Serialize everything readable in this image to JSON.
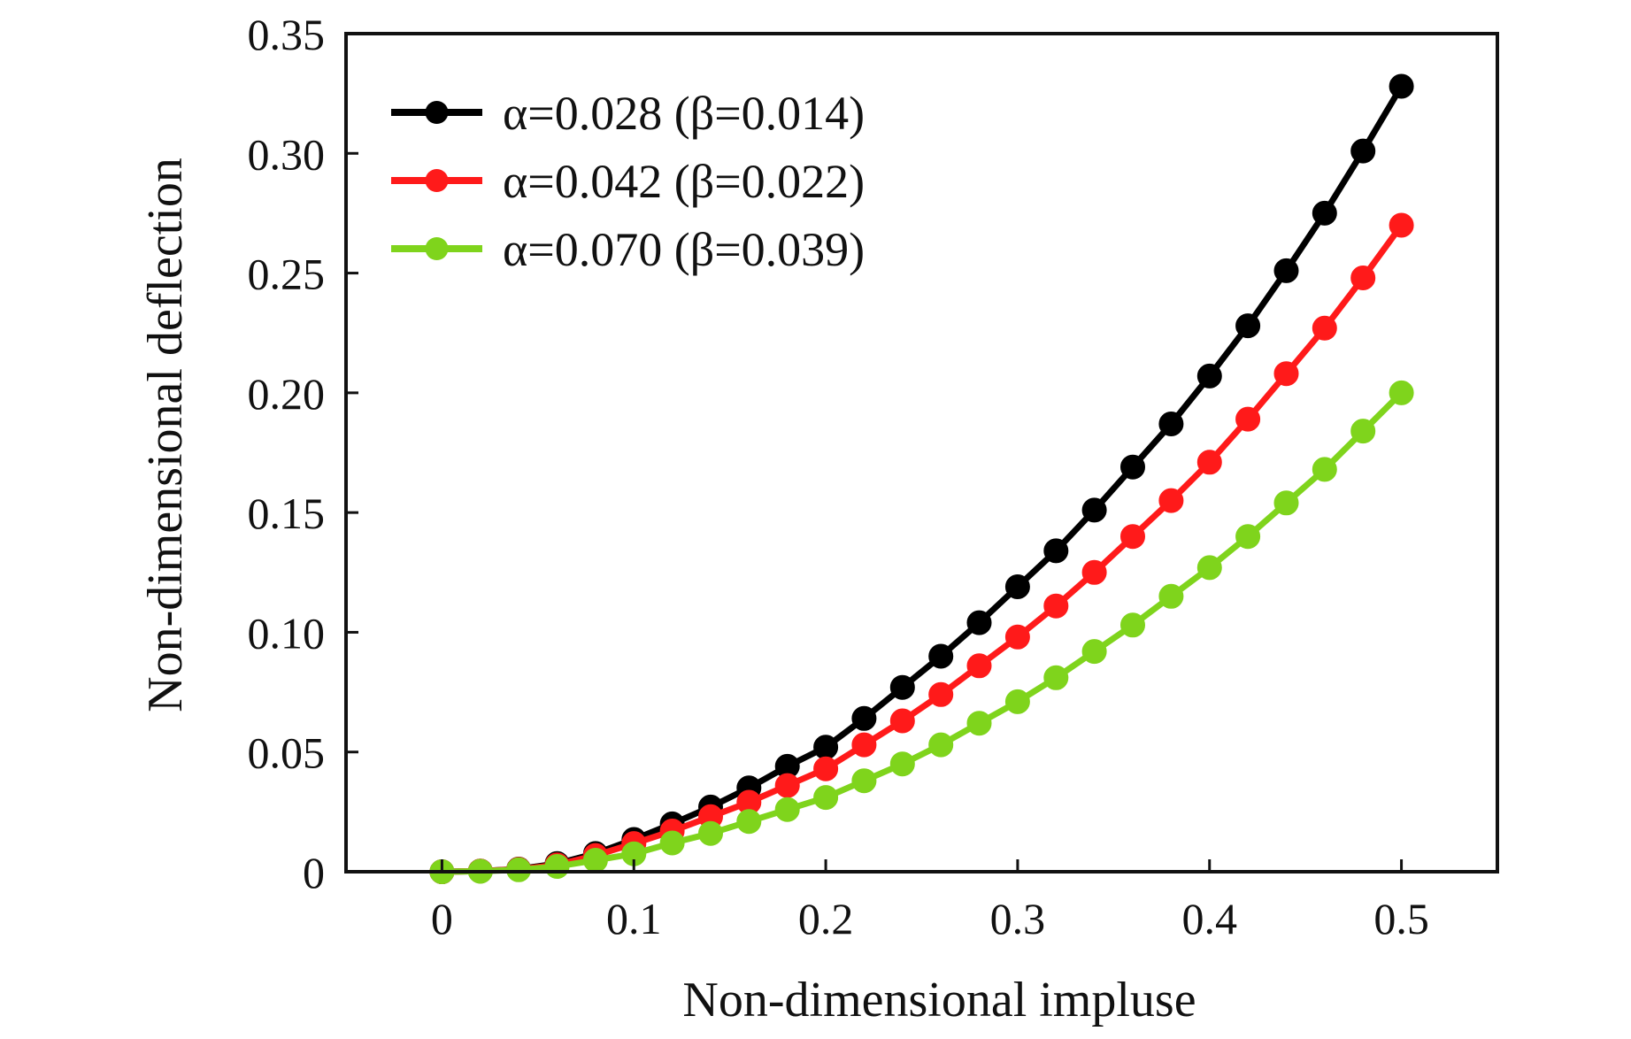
{
  "chart_data": {
    "type": "line",
    "title": "",
    "xlabel": "Non-dimensional impluse",
    "ylabel": "Non-dimensional deflection",
    "xlim": [
      -0.05,
      0.55
    ],
    "ylim": [
      0,
      0.35
    ],
    "xticks": [
      0,
      0.1,
      0.2,
      0.3,
      0.4,
      0.5
    ],
    "xtick_labels": [
      "0",
      "0.1",
      "0.2",
      "0.3",
      "0.4",
      "0.5"
    ],
    "yticks": [
      0,
      0.05,
      0.1,
      0.15,
      0.2,
      0.25,
      0.3,
      0.35
    ],
    "ytick_labels": [
      "0",
      "0.05",
      "0.10",
      "0.15",
      "0.20",
      "0.25",
      "0.30",
      "0.35"
    ],
    "grid": false,
    "legend_position": "top-left",
    "x": [
      0,
      0.02,
      0.04,
      0.06,
      0.08,
      0.1,
      0.12,
      0.14,
      0.16,
      0.18,
      0.2,
      0.22,
      0.24,
      0.26,
      0.28,
      0.3,
      0.32,
      0.34,
      0.36,
      0.38,
      0.4,
      0.42,
      0.44,
      0.46,
      0.48,
      0.5
    ],
    "series": [
      {
        "name": "α=0.028 (β=0.014)",
        "color": "#000000",
        "values": [
          0,
          0.0003,
          0.0011,
          0.0034,
          0.0076,
          0.0135,
          0.02,
          0.027,
          0.035,
          0.044,
          0.052,
          0.064,
          0.077,
          0.09,
          0.104,
          0.119,
          0.134,
          0.151,
          0.169,
          0.187,
          0.207,
          0.228,
          0.251,
          0.275,
          0.301,
          0.328
        ]
      },
      {
        "name": "α=0.042 (β=0.022)",
        "color": "#ff1a1a",
        "values": [
          0,
          0.0003,
          0.001,
          0.0029,
          0.0068,
          0.0118,
          0.017,
          0.023,
          0.029,
          0.036,
          0.043,
          0.053,
          0.063,
          0.074,
          0.086,
          0.098,
          0.111,
          0.125,
          0.14,
          0.155,
          0.171,
          0.189,
          0.208,
          0.227,
          0.248,
          0.27
        ]
      },
      {
        "name": "α=0.070 (β=0.039)",
        "color": "#7fd41c",
        "values": [
          0,
          0.0002,
          0.0008,
          0.0022,
          0.0048,
          0.0075,
          0.012,
          0.016,
          0.021,
          0.026,
          0.031,
          0.038,
          0.045,
          0.053,
          0.062,
          0.071,
          0.081,
          0.092,
          0.103,
          0.115,
          0.127,
          0.14,
          0.154,
          0.168,
          0.184,
          0.2
        ]
      }
    ]
  }
}
